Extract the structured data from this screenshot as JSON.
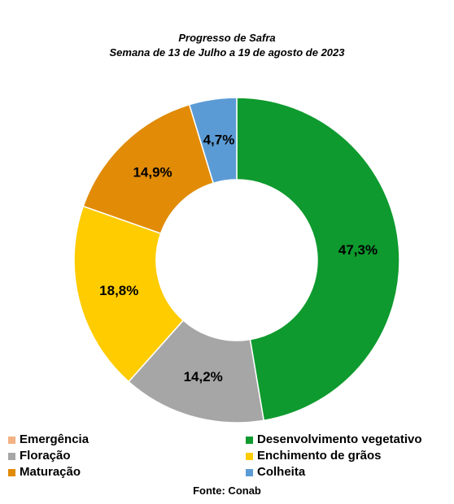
{
  "chart_data": {
    "type": "pie",
    "variant": "donut",
    "title": "Progresso de Safra",
    "subtitle": "Semana de 13 de Julho a 19 de agosto de 2023",
    "source": "Fonte: Conab",
    "legend_position": "bottom",
    "slices": [
      {
        "name": "Emergência",
        "value": 0.0,
        "label": "",
        "color": "#F4B183"
      },
      {
        "name": "Desenvolvimento vegetativo",
        "value": 47.3,
        "label": "47,3%",
        "color": "#0E9A2E"
      },
      {
        "name": "Floração",
        "value": 14.2,
        "label": "14,2%",
        "color": "#A6A6A6"
      },
      {
        "name": "Enchimento de grãos",
        "value": 18.8,
        "label": "18,8%",
        "color": "#FFCC00"
      },
      {
        "name": "Maturação",
        "value": 14.9,
        "label": "14,9%",
        "color": "#E18B07"
      },
      {
        "name": "Colheita",
        "value": 4.7,
        "label": "4,7%",
        "color": "#5B9BD5"
      }
    ]
  }
}
